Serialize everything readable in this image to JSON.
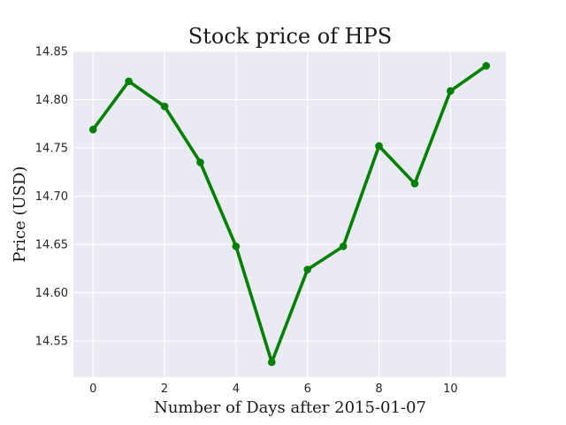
{
  "chart_data": {
    "type": "line",
    "title": "Stock price of HPS",
    "xlabel": "Number of Days after 2015-01-07",
    "ylabel": "Price (USD)",
    "x": [
      0,
      1,
      2,
      3,
      4,
      5,
      6,
      7,
      8,
      9,
      10,
      11
    ],
    "series": [
      {
        "values": [
          14.769,
          14.819,
          14.793,
          14.735,
          14.648,
          14.528,
          14.624,
          14.648,
          14.752,
          14.713,
          14.809,
          14.835
        ]
      }
    ],
    "xlim": [
      -0.55,
      11.55
    ],
    "ylim": [
      14.5125,
      14.85
    ],
    "xticks": [
      0,
      2,
      4,
      6,
      8,
      10
    ],
    "xtick_labels": [
      "0",
      "2",
      "4",
      "6",
      "8",
      "10"
    ],
    "yticks": [
      14.55,
      14.6,
      14.65,
      14.7,
      14.75,
      14.8,
      14.85
    ],
    "ytick_labels": [
      "14.55",
      "14.60",
      "14.65",
      "14.70",
      "14.75",
      "14.80",
      "14.85"
    ],
    "grid": true,
    "line_color": "#008000",
    "plot_background": "#eaeaf2",
    "grid_color": "#ffffff"
  }
}
